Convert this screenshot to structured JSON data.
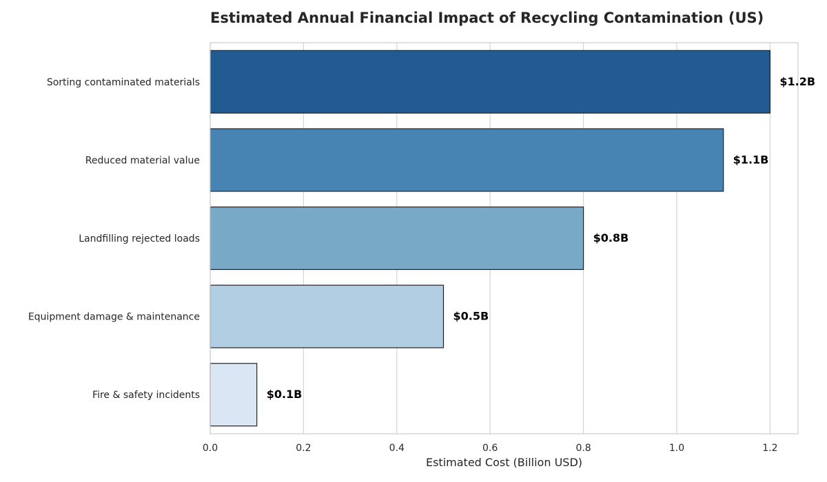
{
  "chart_data": {
    "type": "bar",
    "orientation": "horizontal",
    "title": "Estimated Annual Financial Impact of Recycling Contamination (US)",
    "xlabel": "Estimated Cost (Billion USD)",
    "ylabel": "",
    "xlim": [
      0,
      1.26
    ],
    "x_ticks": [
      "0.0",
      "0.2",
      "0.4",
      "0.6",
      "0.8",
      "1.0",
      "1.2"
    ],
    "grid": "vertical",
    "categories": [
      "Sorting contaminated materials",
      "Reduced material value",
      "Landfilling rejected loads",
      "Equipment damage & maintenance",
      "Fire & safety incidents"
    ],
    "values": [
      1.2,
      1.1,
      0.8,
      0.5,
      0.1
    ],
    "data_labels": [
      "$1.2B",
      "$1.1B",
      "$0.8B",
      "$0.5B",
      "$0.1B"
    ],
    "colors": [
      "#225b91",
      "#4884b3",
      "#78aac8",
      "#b2cee2",
      "#dae6f3"
    ]
  }
}
